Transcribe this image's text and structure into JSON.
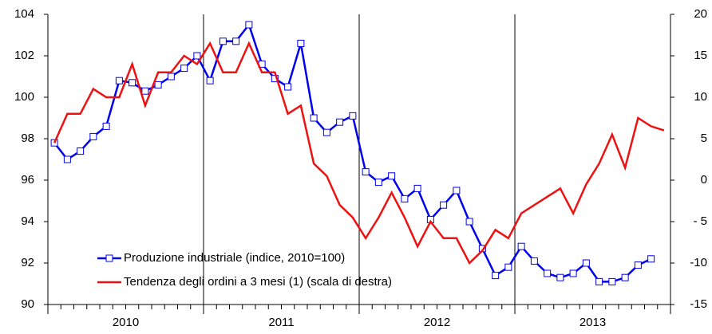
{
  "chart_data": {
    "type": "line",
    "categories": [
      null,
      null,
      null,
      null,
      null,
      null,
      null,
      null,
      null,
      null,
      null,
      null,
      null,
      null,
      null,
      null,
      null,
      null,
      null,
      null,
      null,
      null,
      null,
      null,
      null,
      null,
      null,
      null,
      null,
      null,
      null,
      null,
      null,
      null,
      null,
      null,
      null,
      null,
      null,
      null,
      null,
      null,
      null,
      null,
      null,
      null,
      null,
      null
    ],
    "year_labels": [
      "2010",
      "2011",
      "2012",
      "2013"
    ],
    "series": [
      {
        "name": "Produzione industriale (indice, 2010=100)",
        "color": "#0000ee",
        "marker": "square",
        "axis": "y",
        "values": [
          97.8,
          97.0,
          97.4,
          98.1,
          98.6,
          100.8,
          100.7,
          100.3,
          100.6,
          101.0,
          101.4,
          102.0,
          100.8,
          102.7,
          102.7,
          103.5,
          101.6,
          100.9,
          100.5,
          102.6,
          99.0,
          98.3,
          98.8,
          99.1,
          96.4,
          95.9,
          96.2,
          95.1,
          95.6,
          94.1,
          94.8,
          95.5,
          94.0,
          92.7,
          91.4,
          91.8,
          92.8,
          92.1,
          91.5,
          91.3,
          91.5,
          92.0,
          91.1,
          91.1,
          91.3,
          91.9,
          92.2,
          null
        ]
      },
      {
        "name": "Tendenza degli ordini a 3 mesi (1) (scala di destra)",
        "color": "#ee1111",
        "axis": "y2",
        "values": [
          4.5,
          8,
          8,
          11,
          10,
          10,
          14,
          9,
          13,
          13,
          15,
          14,
          16.5,
          13,
          13,
          16.5,
          13,
          13,
          8,
          9,
          2,
          0.5,
          -3,
          -4.5,
          -7,
          -4.5,
          -1.5,
          -4.5,
          -8,
          -5,
          -7,
          -7,
          -10,
          -8.5,
          -6,
          -7,
          -4,
          -3,
          -2,
          -1,
          -4,
          -0.5,
          2,
          5.5,
          1.5,
          7.5,
          6.5,
          6
        ]
      }
    ],
    "ylim": [
      90,
      104
    ],
    "yticks": [
      90,
      92,
      94,
      96,
      98,
      100,
      102,
      104
    ],
    "y2lim": [
      -15,
      20
    ],
    "y2ticks": [
      {
        "value": -15,
        "label": "-15"
      },
      {
        "value": -10,
        "label": "-10"
      },
      {
        "value": -5,
        "label": "- 5"
      },
      0,
      5,
      10,
      15,
      20
    ],
    "legend": "lower left"
  }
}
